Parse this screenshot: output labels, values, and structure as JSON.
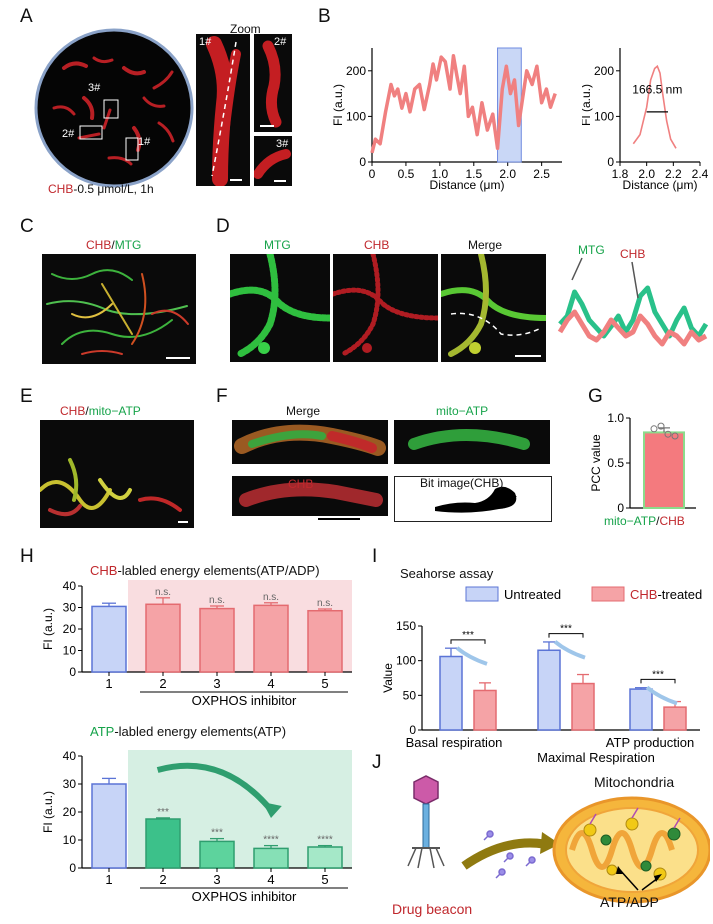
{
  "panels": {
    "A": "A",
    "B": "B",
    "C": "C",
    "D": "D",
    "E": "E",
    "F": "F",
    "G": "G",
    "H": "H",
    "I": "I",
    "J": "J"
  },
  "panel_a": {
    "zoom": "Zoom",
    "roi1": "1#",
    "roi2": "2#",
    "roi3": "3#",
    "caption_red": "CHB",
    "caption_rest": "-0.5 μmol/L, 1h"
  },
  "panel_b": {
    "fwhm": "166.5 nm"
  },
  "panel_c": {
    "chb": "CHB",
    "slash": "/",
    "mtg": "MTG"
  },
  "panel_d": {
    "mtg": "MTG",
    "chb": "CHB",
    "merge": "Merge",
    "mtg_line": "MTG",
    "chb_line": "CHB"
  },
  "panel_e": {
    "chb": "CHB",
    "slash": "/",
    "mito": "mito−ATP"
  },
  "panel_f": {
    "merge": "Merge",
    "mito": "mito−ATP",
    "chb": "CHB",
    "bit": "Bit image(CHB)"
  },
  "panel_g": {
    "xlabel_green": "mito−ATP",
    "xlabel_slash": "/",
    "xlabel_red": "CHB"
  },
  "panel_h": {
    "title1_red": "CHB",
    "title1_rest": "-labled energy elements(ATP/ADP)",
    "title2_green": "ATP",
    "title2_rest": "-labled energy elements(ATP)"
  },
  "panel_i": {
    "title": "Seahorse assay",
    "cat_maximal": "Maximal Respiration"
  },
  "panel_j": {
    "drug": "Drug  beacon",
    "mito": "Mitochondria",
    "atp": "ATP/ADP"
  },
  "colors": {
    "red": "#c0282d",
    "green": "#16a34a",
    "blue_fill": "#c7d4f7",
    "blue_edge": "#5b74d6",
    "pink_fill": "#f5a3a6",
    "pink_edge": "#e46b70"
  },
  "chart_data": [
    {
      "id": "B_left",
      "type": "line",
      "xlabel": "Distance (μm)",
      "ylabel": "FI (a.u.)",
      "xlim": [
        0,
        2.8
      ],
      "ylim": [
        0,
        250
      ],
      "xticks": [
        0,
        0.5,
        1.0,
        1.5,
        2.0,
        2.5
      ],
      "yticks": [
        0,
        100,
        200
      ],
      "highlight_x": [
        1.85,
        2.2
      ],
      "x": [
        0,
        0.05,
        0.12,
        0.2,
        0.28,
        0.33,
        0.38,
        0.44,
        0.5,
        0.56,
        0.63,
        0.7,
        0.77,
        0.85,
        0.9,
        0.95,
        1.02,
        1.08,
        1.15,
        1.2,
        1.25,
        1.3,
        1.36,
        1.42,
        1.48,
        1.55,
        1.62,
        1.7,
        1.78,
        1.85,
        1.92,
        1.98,
        2.04,
        2.1,
        2.16,
        2.22,
        2.28,
        2.36,
        2.43,
        2.5,
        2.57,
        2.63,
        2.7
      ],
      "y": [
        20,
        50,
        40,
        110,
        170,
        145,
        160,
        118,
        150,
        110,
        160,
        170,
        115,
        170,
        215,
        180,
        230,
        220,
        160,
        233,
        190,
        150,
        210,
        100,
        120,
        60,
        130,
        70,
        105,
        30,
        160,
        210,
        150,
        180,
        80,
        140,
        200,
        170,
        210,
        130,
        160,
        120,
        150
      ]
    },
    {
      "id": "B_right",
      "type": "line",
      "xlabel": "Distance (μm)",
      "ylabel": "FI (a.u.)",
      "xlim": [
        1.8,
        2.4
      ],
      "ylim": [
        0,
        250
      ],
      "xticks": [
        1.8,
        2.0,
        2.2,
        2.4
      ],
      "yticks": [
        0,
        100,
        200
      ],
      "x": [
        1.9,
        1.95,
        2.0,
        2.03,
        2.06,
        2.08,
        2.1,
        2.12,
        2.15,
        2.18,
        2.22
      ],
      "y": [
        40,
        60,
        120,
        180,
        205,
        210,
        195,
        150,
        90,
        50,
        30
      ],
      "fwhm_label": "166.5 nm"
    },
    {
      "id": "D_profile",
      "type": "line",
      "series": [
        {
          "name": "MTG",
          "color": "#29c18a",
          "values": [
            0.45,
            0.55,
            0.85,
            0.7,
            0.5,
            0.4,
            0.3,
            0.42,
            0.55,
            0.35,
            0.5,
            0.8,
            0.9,
            0.6,
            0.45,
            0.3,
            0.5,
            0.65,
            0.4,
            0.3,
            0.45
          ]
        },
        {
          "name": "CHB",
          "color": "#f08080",
          "values": [
            0.35,
            0.5,
            0.6,
            0.45,
            0.3,
            0.25,
            0.35,
            0.5,
            0.4,
            0.3,
            0.35,
            0.55,
            0.45,
            0.3,
            0.2,
            0.35,
            0.3,
            0.2,
            0.35,
            0.25,
            0.3
          ]
        }
      ]
    },
    {
      "id": "G",
      "type": "bar",
      "ylabel": "PCC value",
      "categories": [
        ""
      ],
      "values": [
        0.84
      ],
      "error": [
        0.05
      ],
      "ylim": [
        0,
        1.0
      ],
      "yticks": [
        0,
        0.5,
        1.0
      ],
      "points": [
        0.88,
        0.91,
        0.82,
        0.8
      ]
    },
    {
      "id": "H_top",
      "type": "bar",
      "title": "CHB-labled energy elements(ATP/ADP)",
      "ylabel": "FI (a.u.)",
      "xlabel": "OXPHOS inhibitor",
      "categories": [
        "1",
        "2",
        "3",
        "4",
        "5"
      ],
      "values": [
        30.5,
        31.5,
        29.5,
        31.0,
        28.5
      ],
      "error": [
        1.5,
        3.0,
        1.2,
        1.2,
        0.8
      ],
      "ylim": [
        0,
        40
      ],
      "yticks": [
        0,
        10,
        20,
        30,
        40
      ],
      "annotations": [
        "",
        "n.s.",
        "n.s.",
        "n.s.",
        "n.s."
      ]
    },
    {
      "id": "H_bottom",
      "type": "bar",
      "title": "ATP-labled energy elements(ATP)",
      "ylabel": "FI (a.u.)",
      "xlabel": "OXPHOS inhibitor",
      "categories": [
        "1",
        "2",
        "3",
        "4",
        "5"
      ],
      "values": [
        30.0,
        17.5,
        9.5,
        7.0,
        7.5
      ],
      "error": [
        2.0,
        0.4,
        1.0,
        1.0,
        0.5
      ],
      "ylim": [
        0,
        40
      ],
      "yticks": [
        0,
        10,
        20,
        30,
        40
      ],
      "annotations": [
        "",
        "***",
        "***",
        "****",
        "****"
      ]
    },
    {
      "id": "I",
      "type": "bar",
      "title": "Seahorse assay",
      "ylabel": "Value",
      "categories": [
        "Basal respiration",
        "Maximal Respiration",
        "ATP production"
      ],
      "series": [
        {
          "name": "Untreated",
          "values": [
            106,
            115,
            59
          ],
          "error": [
            12,
            12,
            2
          ]
        },
        {
          "name": "CHB-treated",
          "values": [
            57,
            67,
            33
          ],
          "error": [
            11,
            13,
            8
          ]
        }
      ],
      "ylim": [
        0,
        150
      ],
      "yticks": [
        0,
        50,
        100,
        150
      ],
      "significance": [
        "***",
        "***",
        "***"
      ]
    }
  ]
}
